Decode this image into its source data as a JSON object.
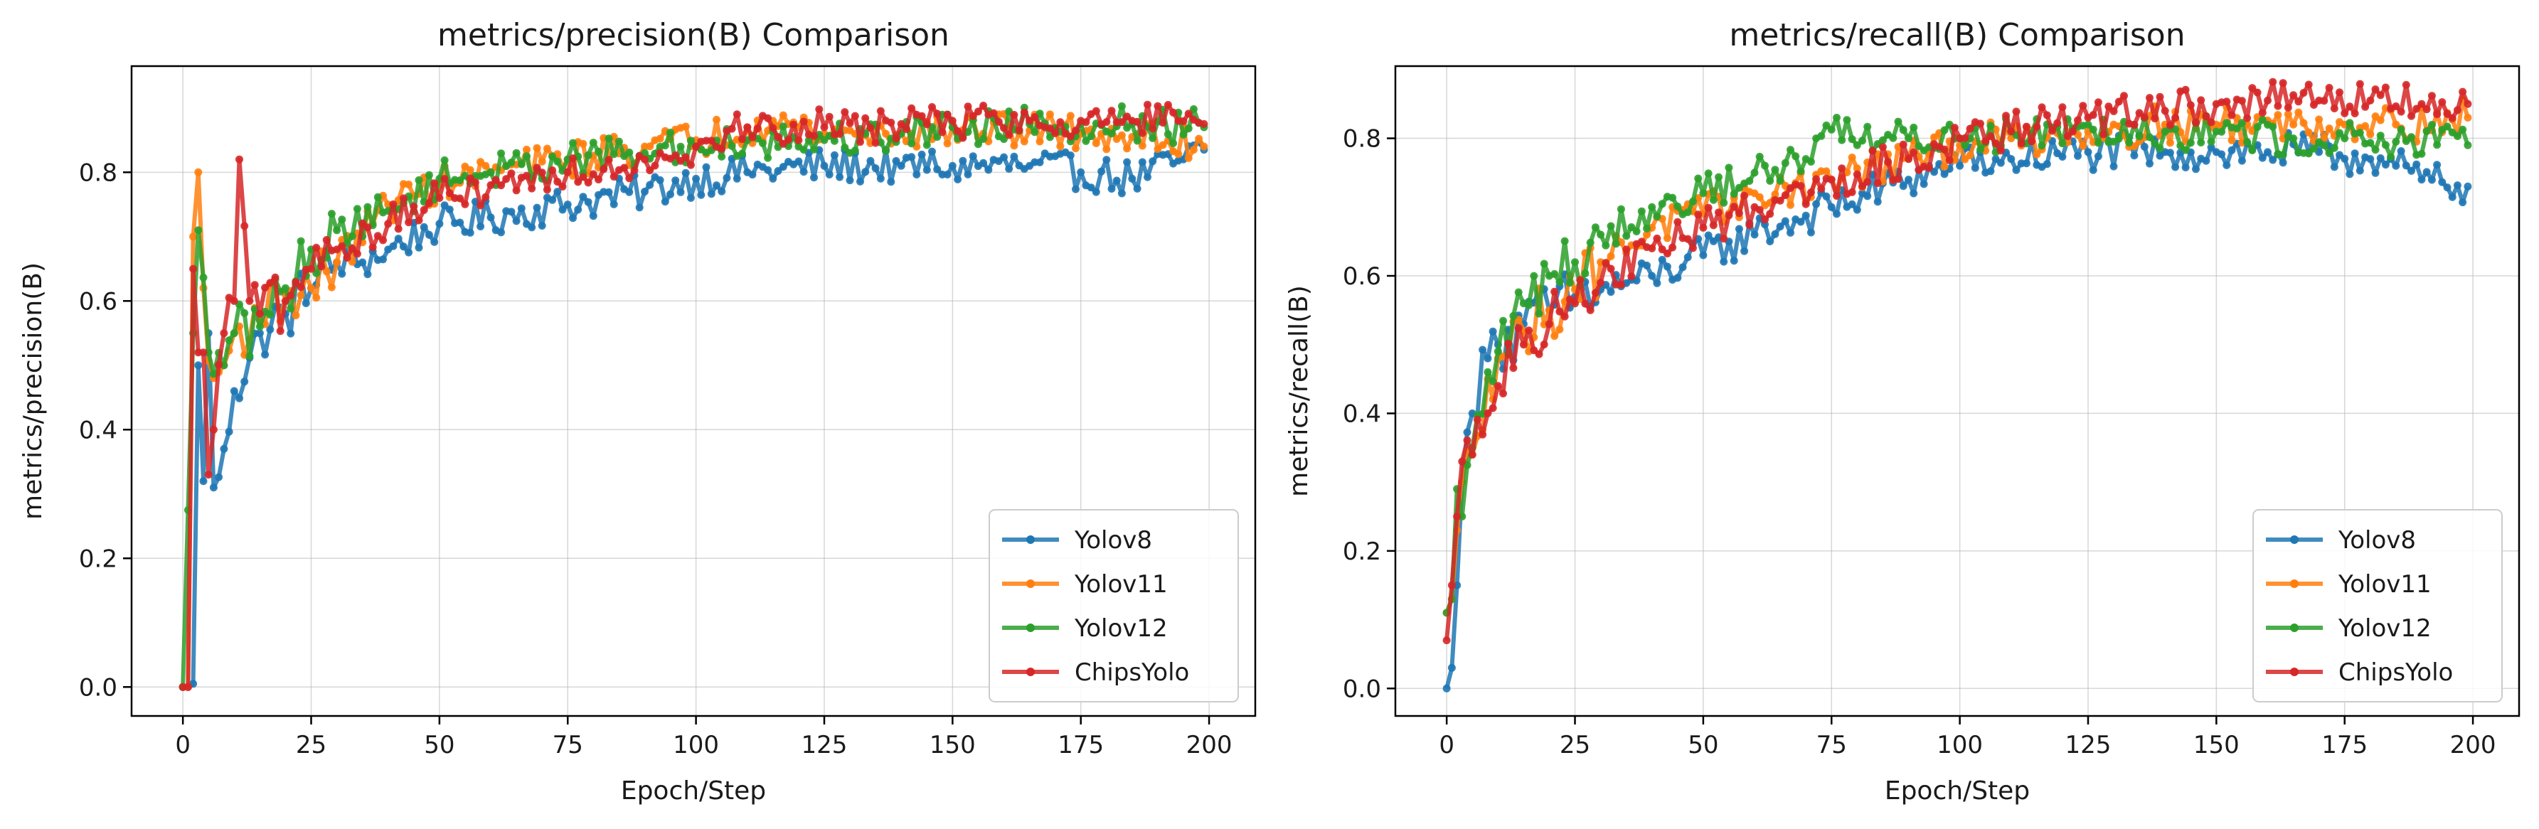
{
  "chart_data": [
    {
      "type": "line",
      "title": "metrics/precision(B) Comparison",
      "xlabel": "Epoch/Step",
      "ylabel": "metrics/precision(B)",
      "xlim": [
        -10,
        209
      ],
      "ylim": [
        -0.045,
        0.965
      ],
      "xticks": [
        0,
        25,
        50,
        75,
        100,
        125,
        150,
        175,
        200
      ],
      "yticks": [
        0.0,
        0.2,
        0.4,
        0.6,
        0.8
      ],
      "ytick_labels": [
        "0.0",
        "0.2",
        "0.4",
        "0.6",
        "0.8"
      ],
      "grid": true,
      "legend_position": "lower right",
      "series": [
        {
          "name": "Yolov8",
          "color": "#1f77b4",
          "anchors": [
            [
              0,
              0.0
            ],
            [
              1,
              0.0
            ],
            [
              2,
              0.005
            ],
            [
              3,
              0.5
            ],
            [
              4,
              0.32
            ],
            [
              5,
              0.55
            ],
            [
              6,
              0.31
            ],
            [
              8,
              0.37
            ],
            [
              10,
              0.46
            ],
            [
              15,
              0.55
            ],
            [
              20,
              0.58
            ],
            [
              25,
              0.62
            ],
            [
              30,
              0.66
            ],
            [
              35,
              0.66
            ],
            [
              40,
              0.68
            ],
            [
              50,
              0.72
            ],
            [
              60,
              0.73
            ],
            [
              75,
              0.75
            ],
            [
              90,
              0.77
            ],
            [
              100,
              0.79
            ],
            [
              110,
              0.8
            ],
            [
              125,
              0.81
            ],
            [
              140,
              0.81
            ],
            [
              150,
              0.81
            ],
            [
              165,
              0.81
            ],
            [
              175,
              0.8
            ],
            [
              185,
              0.79
            ],
            [
              195,
              0.82
            ],
            [
              199,
              0.835
            ]
          ]
        },
        {
          "name": "Yolov11",
          "color": "#ff7f0e",
          "anchors": [
            [
              0,
              0.0
            ],
            [
              1,
              0.0
            ],
            [
              2,
              0.7
            ],
            [
              3,
              0.8
            ],
            [
              4,
              0.62
            ],
            [
              6,
              0.48
            ],
            [
              8,
              0.5
            ],
            [
              10,
              0.55
            ],
            [
              15,
              0.57
            ],
            [
              20,
              0.61
            ],
            [
              25,
              0.62
            ],
            [
              30,
              0.66
            ],
            [
              40,
              0.75
            ],
            [
              50,
              0.78
            ],
            [
              60,
              0.8
            ],
            [
              75,
              0.82
            ],
            [
              90,
              0.84
            ],
            [
              100,
              0.85
            ],
            [
              110,
              0.87
            ],
            [
              115,
              0.88
            ],
            [
              125,
              0.86
            ],
            [
              140,
              0.86
            ],
            [
              150,
              0.87
            ],
            [
              165,
              0.865
            ],
            [
              175,
              0.86
            ],
            [
              185,
              0.855
            ],
            [
              199,
              0.84
            ]
          ]
        },
        {
          "name": "Yolov12",
          "color": "#2ca02c",
          "anchors": [
            [
              0,
              0.0
            ],
            [
              2,
              0.55
            ],
            [
              3,
              0.71
            ],
            [
              5,
              0.52
            ],
            [
              8,
              0.5
            ],
            [
              10,
              0.55
            ],
            [
              15,
              0.56
            ],
            [
              20,
              0.62
            ],
            [
              25,
              0.68
            ],
            [
              30,
              0.71
            ],
            [
              40,
              0.74
            ],
            [
              50,
              0.79
            ],
            [
              60,
              0.8
            ],
            [
              75,
              0.82
            ],
            [
              90,
              0.83
            ],
            [
              100,
              0.84
            ],
            [
              110,
              0.85
            ],
            [
              125,
              0.85
            ],
            [
              140,
              0.86
            ],
            [
              150,
              0.87
            ],
            [
              165,
              0.875
            ],
            [
              175,
              0.875
            ],
            [
              185,
              0.875
            ],
            [
              199,
              0.87
            ]
          ]
        },
        {
          "name": "ChipsYolo",
          "color": "#d62728",
          "anchors": [
            [
              0,
              0.0
            ],
            [
              1,
              0.0
            ],
            [
              2,
              0.65
            ],
            [
              3,
              0.52
            ],
            [
              4,
              0.52
            ],
            [
              5,
              0.33
            ],
            [
              6,
              0.4
            ],
            [
              8,
              0.55
            ],
            [
              10,
              0.6
            ],
            [
              11,
              0.82
            ],
            [
              13,
              0.6
            ],
            [
              15,
              0.58
            ],
            [
              20,
              0.6
            ],
            [
              25,
              0.65
            ],
            [
              30,
              0.68
            ],
            [
              40,
              0.72
            ],
            [
              50,
              0.76
            ],
            [
              60,
              0.78
            ],
            [
              75,
              0.8
            ],
            [
              90,
              0.82
            ],
            [
              100,
              0.84
            ],
            [
              110,
              0.87
            ],
            [
              125,
              0.87
            ],
            [
              140,
              0.875
            ],
            [
              150,
              0.88
            ],
            [
              165,
              0.88
            ],
            [
              175,
              0.88
            ],
            [
              185,
              0.88
            ],
            [
              199,
              0.875
            ]
          ]
        }
      ]
    },
    {
      "type": "line",
      "title": "metrics/recall(B) Comparison",
      "xlabel": "Epoch/Step",
      "ylabel": "metrics/recall(B)",
      "xlim": [
        -10,
        209
      ],
      "ylim": [
        -0.04,
        0.905
      ],
      "xticks": [
        0,
        25,
        50,
        75,
        100,
        125,
        150,
        175,
        200
      ],
      "yticks": [
        0.0,
        0.2,
        0.4,
        0.6,
        0.8
      ],
      "ytick_labels": [
        "0.0",
        "0.2",
        "0.4",
        "0.6",
        "0.8"
      ],
      "grid": true,
      "legend_position": "lower right",
      "series": [
        {
          "name": "Yolov8",
          "color": "#1f77b4",
          "anchors": [
            [
              0,
              0.0
            ],
            [
              1,
              0.03
            ],
            [
              2,
              0.15
            ],
            [
              3,
              0.3
            ],
            [
              5,
              0.4
            ],
            [
              8,
              0.48
            ],
            [
              10,
              0.5
            ],
            [
              15,
              0.53
            ],
            [
              20,
              0.55
            ],
            [
              25,
              0.57
            ],
            [
              30,
              0.58
            ],
            [
              40,
              0.6
            ],
            [
              50,
              0.63
            ],
            [
              60,
              0.66
            ],
            [
              75,
              0.7
            ],
            [
              90,
              0.74
            ],
            [
              100,
              0.76
            ],
            [
              110,
              0.77
            ],
            [
              125,
              0.78
            ],
            [
              140,
              0.78
            ],
            [
              150,
              0.78
            ],
            [
              160,
              0.78
            ],
            [
              170,
              0.78
            ],
            [
              180,
              0.77
            ],
            [
              185,
              0.76
            ],
            [
              190,
              0.74
            ],
            [
              199,
              0.73
            ]
          ]
        },
        {
          "name": "Yolov11",
          "color": "#ff7f0e",
          "anchors": [
            [
              0,
              0.11
            ],
            [
              1,
              0.13
            ],
            [
              2,
              0.23
            ],
            [
              3,
              0.3
            ],
            [
              5,
              0.34
            ],
            [
              8,
              0.45
            ],
            [
              10,
              0.48
            ],
            [
              15,
              0.52
            ],
            [
              20,
              0.55
            ],
            [
              25,
              0.58
            ],
            [
              30,
              0.62
            ],
            [
              40,
              0.67
            ],
            [
              50,
              0.69
            ],
            [
              60,
              0.72
            ],
            [
              75,
              0.74
            ],
            [
              90,
              0.77
            ],
            [
              100,
              0.79
            ],
            [
              110,
              0.8
            ],
            [
              125,
              0.81
            ],
            [
              140,
              0.82
            ],
            [
              150,
              0.82
            ],
            [
              165,
              0.82
            ],
            [
              175,
              0.82
            ],
            [
              185,
              0.82
            ],
            [
              199,
              0.83
            ]
          ]
        },
        {
          "name": "Yolov12",
          "color": "#2ca02c",
          "anchors": [
            [
              0,
              0.11
            ],
            [
              1,
              0.13
            ],
            [
              2,
              0.29
            ],
            [
              3,
              0.25
            ],
            [
              5,
              0.35
            ],
            [
              8,
              0.46
            ],
            [
              10,
              0.49
            ],
            [
              15,
              0.56
            ],
            [
              20,
              0.6
            ],
            [
              25,
              0.62
            ],
            [
              30,
              0.66
            ],
            [
              40,
              0.7
            ],
            [
              50,
              0.72
            ],
            [
              60,
              0.75
            ],
            [
              70,
              0.77
            ],
            [
              76,
              0.83
            ],
            [
              80,
              0.79
            ],
            [
              90,
              0.8
            ],
            [
              100,
              0.8
            ],
            [
              110,
              0.81
            ],
            [
              125,
              0.82
            ],
            [
              140,
              0.81
            ],
            [
              150,
              0.81
            ],
            [
              165,
              0.8
            ],
            [
              175,
              0.8
            ],
            [
              185,
              0.795
            ],
            [
              199,
              0.79
            ]
          ]
        },
        {
          "name": "ChipsYolo",
          "color": "#d62728",
          "anchors": [
            [
              0,
              0.07
            ],
            [
              1,
              0.15
            ],
            [
              2,
              0.25
            ],
            [
              3,
              0.33
            ],
            [
              5,
              0.34
            ],
            [
              8,
              0.4
            ],
            [
              10,
              0.44
            ],
            [
              15,
              0.5
            ],
            [
              20,
              0.53
            ],
            [
              25,
              0.56
            ],
            [
              30,
              0.59
            ],
            [
              40,
              0.64
            ],
            [
              50,
              0.67
            ],
            [
              60,
              0.7
            ],
            [
              75,
              0.74
            ],
            [
              90,
              0.77
            ],
            [
              100,
              0.8
            ],
            [
              110,
              0.81
            ],
            [
              125,
              0.83
            ],
            [
              140,
              0.84
            ],
            [
              150,
              0.85
            ],
            [
              160,
              0.855
            ],
            [
              170,
              0.855
            ],
            [
              180,
              0.855
            ],
            [
              190,
              0.85
            ],
            [
              199,
              0.85
            ]
          ]
        }
      ]
    }
  ]
}
